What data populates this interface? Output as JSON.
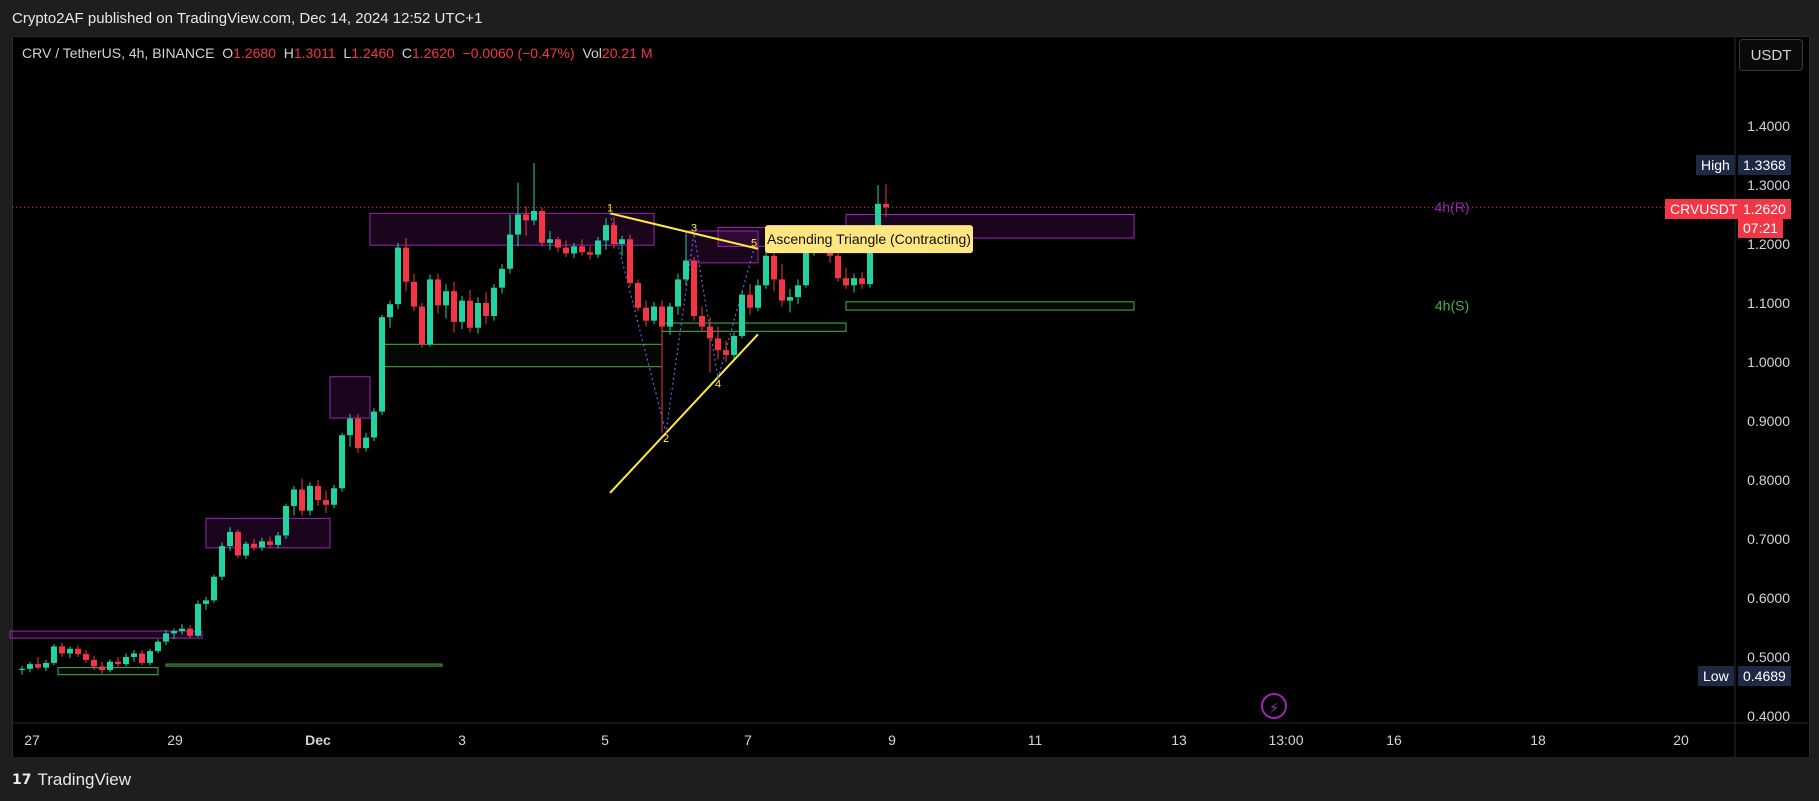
{
  "header": {
    "published": "Crypto2AF published on TradingView.com, Dec 14, 2024 12:52 UTC+1"
  },
  "legend": {
    "symbol": "CRV / TetherUS, 4h, BINANCE",
    "o_label": "O",
    "o": "1.2680",
    "h_label": "H",
    "h": "1.3011",
    "l_label": "L",
    "l": "1.2460",
    "c_label": "C",
    "c": "1.2620",
    "change": "−0.0060 (−0.47%)",
    "vol_label": "Vol",
    "vol": "20.21 M"
  },
  "currency": "USDT",
  "footer": {
    "brand": "TradingView"
  },
  "price_tags": {
    "high_label": "High",
    "high": "1.3368",
    "low_label": "Low",
    "low": "0.4689",
    "symbol_label": "CRVUSDT",
    "last": "1.2620",
    "countdown": "07:21"
  },
  "annotations": {
    "pattern": "Ascending Triangle (Contracting)",
    "resistance_label": "4h(R)",
    "support_label": "4h(S)",
    "pivots": [
      "1",
      "2",
      "3",
      "4",
      "5"
    ]
  },
  "colors": {
    "up": "#22d3a0",
    "down": "#f23645",
    "zone": "#9c27b0",
    "support": "#4caf50",
    "trend": "#ffeb3b",
    "pivot": "#5b6bd6"
  },
  "chart_data": {
    "type": "candlestick",
    "xlabel": "",
    "ylabel": "",
    "ylim": [
      0.4,
      1.5
    ],
    "y_ticks": [
      "1.4000",
      "1.3000",
      "1.2000",
      "1.1000",
      "1.0000",
      "0.9000",
      "0.8000",
      "0.7000",
      "0.6000",
      "0.5000",
      "0.4000"
    ],
    "x_ticks": [
      "27",
      "29",
      "Dec",
      "3",
      "5",
      "7",
      "9",
      "11",
      "13",
      "13:00",
      "16",
      "18",
      "20"
    ],
    "last_price": 1.262,
    "candles": [
      [
        0.478,
        0.485,
        0.47,
        0.48
      ],
      [
        0.48,
        0.492,
        0.474,
        0.488
      ],
      [
        0.488,
        0.5,
        0.479,
        0.482
      ],
      [
        0.482,
        0.495,
        0.476,
        0.49
      ],
      [
        0.49,
        0.522,
        0.486,
        0.518
      ],
      [
        0.518,
        0.524,
        0.5,
        0.506
      ],
      [
        0.506,
        0.518,
        0.498,
        0.514
      ],
      [
        0.514,
        0.52,
        0.5,
        0.505
      ],
      [
        0.505,
        0.512,
        0.49,
        0.495
      ],
      [
        0.495,
        0.502,
        0.478,
        0.484
      ],
      [
        0.484,
        0.492,
        0.472,
        0.478
      ],
      [
        0.478,
        0.496,
        0.474,
        0.492
      ],
      [
        0.492,
        0.5,
        0.482,
        0.488
      ],
      [
        0.488,
        0.506,
        0.484,
        0.5
      ],
      [
        0.5,
        0.512,
        0.492,
        0.506
      ],
      [
        0.506,
        0.512,
        0.486,
        0.49
      ],
      [
        0.49,
        0.514,
        0.486,
        0.51
      ],
      [
        0.51,
        0.53,
        0.506,
        0.526
      ],
      [
        0.526,
        0.546,
        0.52,
        0.54
      ],
      [
        0.54,
        0.548,
        0.53,
        0.544
      ],
      [
        0.544,
        0.556,
        0.538,
        0.548
      ],
      [
        0.548,
        0.554,
        0.532,
        0.536
      ],
      [
        0.536,
        0.596,
        0.534,
        0.59
      ],
      [
        0.59,
        0.602,
        0.58,
        0.596
      ],
      [
        0.596,
        0.64,
        0.592,
        0.636
      ],
      [
        0.636,
        0.694,
        0.63,
        0.688
      ],
      [
        0.688,
        0.72,
        0.68,
        0.712
      ],
      [
        0.712,
        0.716,
        0.668,
        0.672
      ],
      [
        0.672,
        0.696,
        0.666,
        0.692
      ],
      [
        0.692,
        0.7,
        0.68,
        0.686
      ],
      [
        0.686,
        0.702,
        0.68,
        0.696
      ],
      [
        0.696,
        0.704,
        0.686,
        0.69
      ],
      [
        0.69,
        0.712,
        0.684,
        0.706
      ],
      [
        0.706,
        0.76,
        0.7,
        0.756
      ],
      [
        0.756,
        0.79,
        0.74,
        0.784
      ],
      [
        0.784,
        0.802,
        0.74,
        0.748
      ],
      [
        0.748,
        0.796,
        0.74,
        0.79
      ],
      [
        0.79,
        0.8,
        0.756,
        0.766
      ],
      [
        0.766,
        0.782,
        0.744,
        0.758
      ],
      [
        0.758,
        0.792,
        0.752,
        0.786
      ],
      [
        0.786,
        0.88,
        0.78,
        0.876
      ],
      [
        0.876,
        0.912,
        0.856,
        0.904
      ],
      [
        0.904,
        0.912,
        0.846,
        0.854
      ],
      [
        0.854,
        0.88,
        0.848,
        0.872
      ],
      [
        0.872,
        0.922,
        0.866,
        0.916
      ],
      [
        0.916,
        1.08,
        0.91,
        1.076
      ],
      [
        1.076,
        1.104,
        1.058,
        1.098
      ],
      [
        1.098,
        1.202,
        1.09,
        1.194
      ],
      [
        1.194,
        1.21,
        1.12,
        1.136
      ],
      [
        1.136,
        1.15,
        1.086,
        1.094
      ],
      [
        1.094,
        1.1,
        1.024,
        1.03
      ],
      [
        1.03,
        1.148,
        1.026,
        1.14
      ],
      [
        1.14,
        1.15,
        1.082,
        1.096
      ],
      [
        1.096,
        1.132,
        1.074,
        1.12
      ],
      [
        1.12,
        1.136,
        1.05,
        1.068
      ],
      [
        1.068,
        1.112,
        1.056,
        1.104
      ],
      [
        1.104,
        1.122,
        1.05,
        1.058
      ],
      [
        1.058,
        1.11,
        1.048,
        1.1
      ],
      [
        1.1,
        1.118,
        1.064,
        1.078
      ],
      [
        1.078,
        1.132,
        1.07,
        1.126
      ],
      [
        1.126,
        1.166,
        1.116,
        1.158
      ],
      [
        1.158,
        1.25,
        1.15,
        1.216
      ],
      [
        1.216,
        1.304,
        1.196,
        1.25
      ],
      [
        1.25,
        1.264,
        1.214,
        1.24
      ],
      [
        1.24,
        1.337,
        1.232,
        1.256
      ],
      [
        1.256,
        1.262,
        1.196,
        1.202
      ],
      [
        1.202,
        1.222,
        1.19,
        1.208
      ],
      [
        1.208,
        1.212,
        1.186,
        1.194
      ],
      [
        1.194,
        1.206,
        1.178,
        1.184
      ],
      [
        1.184,
        1.202,
        1.176,
        1.196
      ],
      [
        1.196,
        1.208,
        1.18,
        1.186
      ],
      [
        1.186,
        1.196,
        1.174,
        1.182
      ],
      [
        1.182,
        1.212,
        1.176,
        1.206
      ],
      [
        1.206,
        1.244,
        1.19,
        1.232
      ],
      [
        1.232,
        1.246,
        1.192,
        1.2
      ],
      [
        1.2,
        1.214,
        1.18,
        1.208
      ],
      [
        1.208,
        1.216,
        1.128,
        1.134
      ],
      [
        1.134,
        1.14,
        1.086,
        1.092
      ],
      [
        1.092,
        1.104,
        1.06,
        1.07
      ],
      [
        1.07,
        1.102,
        1.064,
        1.094
      ],
      [
        1.094,
        1.104,
        0.88,
        1.06
      ],
      [
        1.06,
        1.1,
        1.046,
        1.094
      ],
      [
        1.094,
        1.15,
        1.08,
        1.14
      ],
      [
        1.14,
        1.218,
        1.13,
        1.172
      ],
      [
        1.172,
        1.178,
        1.07,
        1.078
      ],
      [
        1.078,
        1.094,
        1.052,
        1.06
      ],
      [
        1.06,
        1.076,
        0.982,
        1.04
      ],
      [
        1.04,
        1.06,
        1.004,
        1.02
      ],
      [
        1.02,
        1.036,
        1.0,
        1.012
      ],
      [
        1.012,
        1.05,
        1.006,
        1.044
      ],
      [
        1.044,
        1.12,
        1.04,
        1.114
      ],
      [
        1.114,
        1.132,
        1.08,
        1.092
      ],
      [
        1.092,
        1.14,
        1.086,
        1.13
      ],
      [
        1.13,
        1.188,
        1.124,
        1.18
      ],
      [
        1.18,
        1.2,
        1.12,
        1.14
      ],
      [
        1.14,
        1.166,
        1.094,
        1.104
      ],
      [
        1.104,
        1.124,
        1.084,
        1.11
      ],
      [
        1.11,
        1.14,
        1.098,
        1.13
      ],
      [
        1.13,
        1.21,
        1.126,
        1.198
      ],
      [
        1.198,
        1.224,
        1.18,
        1.212
      ],
      [
        1.212,
        1.228,
        1.192,
        1.2
      ],
      [
        1.2,
        1.212,
        1.168,
        1.18
      ],
      [
        1.18,
        1.186,
        1.136,
        1.142
      ],
      [
        1.142,
        1.16,
        1.124,
        1.13
      ],
      [
        1.13,
        1.15,
        1.118,
        1.142
      ],
      [
        1.142,
        1.152,
        1.124,
        1.132
      ],
      [
        1.132,
        1.216,
        1.126,
        1.208
      ],
      [
        1.208,
        1.3,
        1.2,
        1.268
      ],
      [
        1.268,
        1.301,
        1.246,
        1.262
      ]
    ],
    "zones": [
      {
        "kind": "resistance",
        "x0": -1.5,
        "x1": 22.5,
        "y0": 0.532,
        "y1": 0.544
      },
      {
        "kind": "support",
        "x0": 4.5,
        "x1": 17,
        "y0": 0.47,
        "y1": 0.482
      },
      {
        "kind": "support",
        "x0": 18,
        "x1": 52.5,
        "y0": 0.486,
        "y1": 0.488
      },
      {
        "kind": "resistance",
        "x0": 23,
        "x1": 38.5,
        "y0": 0.685,
        "y1": 0.735
      },
      {
        "kind": "resistance",
        "x0": 38.5,
        "x1": 43.5,
        "y0": 0.905,
        "y1": 0.975
      },
      {
        "kind": "resistance",
        "x0": 43.5,
        "x1": 79,
        "y0": 1.198,
        "y1": 1.252
      },
      {
        "kind": "support",
        "x0": 45,
        "x1": 80,
        "y0": 0.992,
        "y1": 1.03
      },
      {
        "kind": "resistance",
        "x0": 83,
        "x1": 92,
        "y0": 1.168,
        "y1": 1.222
      },
      {
        "kind": "support",
        "x0": 80,
        "x1": 103,
        "y0": 1.052,
        "y1": 1.066
      },
      {
        "kind": "resistance",
        "x0": 87,
        "x1": 110,
        "y0": 1.196,
        "y1": 1.228
      },
      {
        "kind": "resistance",
        "x0": 103,
        "x1": 139,
        "y0": 1.21,
        "y1": 1.25
      },
      {
        "kind": "support",
        "x0": 103,
        "x1": 139,
        "y0": 1.088,
        "y1": 1.102
      }
    ],
    "trendlines": [
      {
        "x0": 73.5,
        "y0": 1.252,
        "x1": 92,
        "y1": 1.192
      },
      {
        "x0": 73.5,
        "y0": 0.778,
        "x1": 92,
        "y1": 1.047
      }
    ],
    "pivots": [
      {
        "label": "1",
        "x": 73.5,
        "y": 1.252
      },
      {
        "label": "2",
        "x": 80.5,
        "y": 0.88
      },
      {
        "label": "3",
        "x": 84,
        "y": 1.218
      },
      {
        "label": "4",
        "x": 87,
        "y": 0.972
      },
      {
        "label": "5",
        "x": 91.5,
        "y": 1.192
      }
    ]
  }
}
